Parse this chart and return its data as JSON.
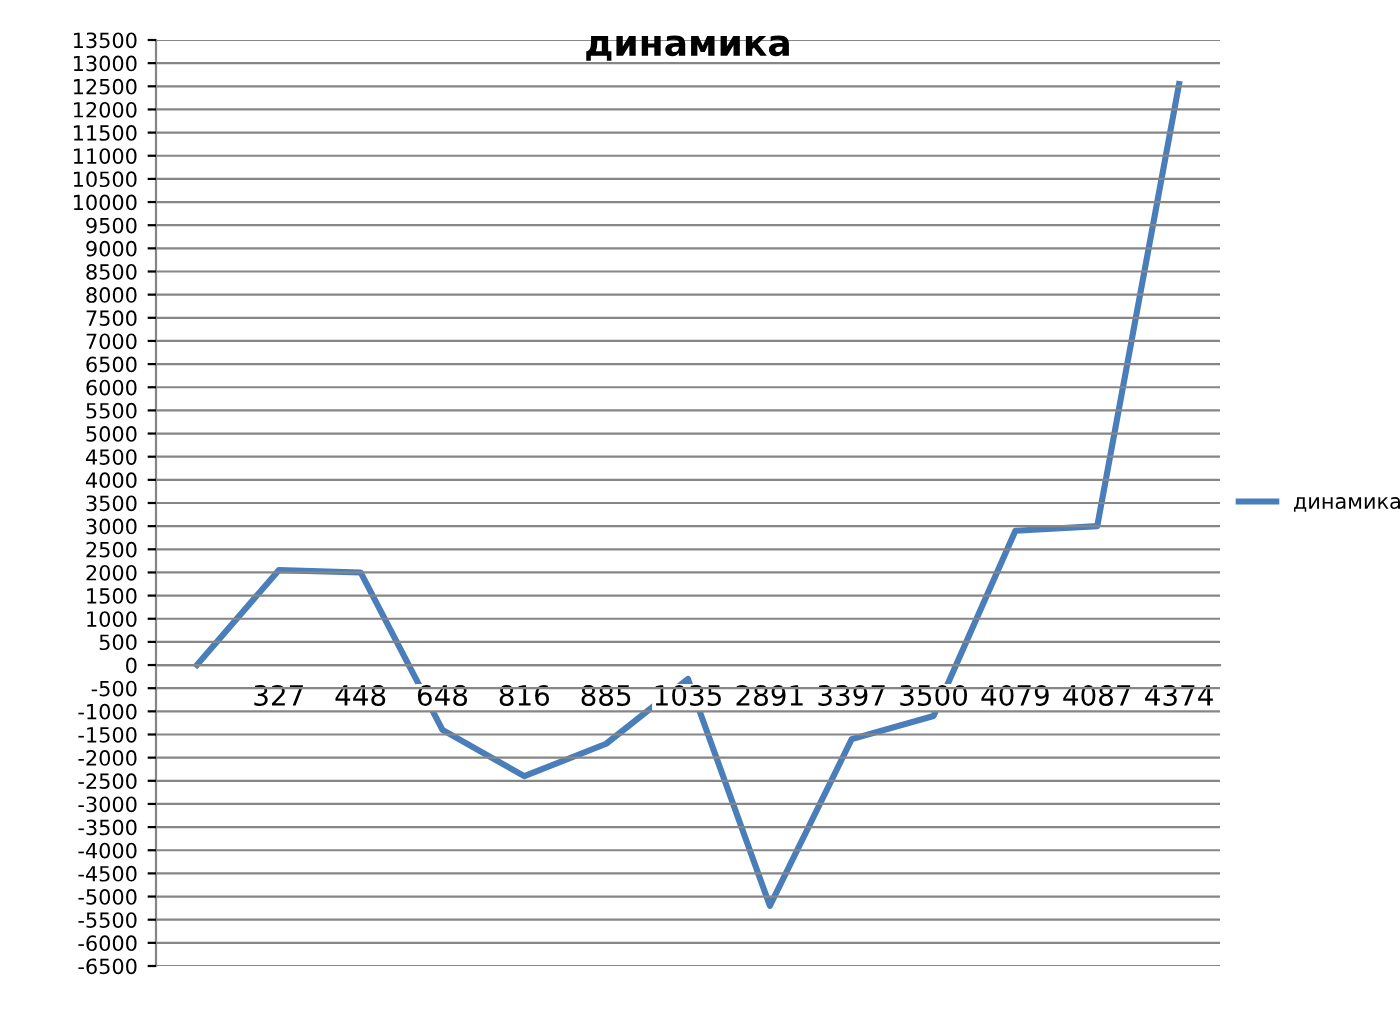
{
  "chart_data": {
    "type": "line",
    "title": "динамика",
    "categories": [
      null,
      "327",
      "448",
      "648",
      "816",
      "885",
      "1035",
      "2891",
      "3397",
      "3500",
      "4079",
      "4087",
      "4374"
    ],
    "series": [
      {
        "name": "динамика",
        "color": "#4a7ebb",
        "values": [
          0,
          2050,
          2000,
          -1400,
          -2400,
          -1700,
          -300,
          -5200,
          -1600,
          -1100,
          2900,
          3000,
          12550
        ]
      }
    ],
    "ylim": [
      -6500,
      13500
    ],
    "yticks": [
      -6500,
      -6000,
      -5500,
      -5000,
      -4500,
      -4000,
      -3500,
      -3000,
      -2500,
      -2000,
      -1500,
      -1000,
      -500,
      0,
      500,
      1000,
      1500,
      2000,
      2500,
      3000,
      3500,
      4000,
      4500,
      5000,
      5500,
      6000,
      6500,
      7000,
      7500,
      8000,
      8500,
      9000,
      9500,
      10000,
      10500,
      11000,
      11500,
      12000,
      12500,
      13000,
      13500
    ],
    "grid": "y",
    "legend": "right",
    "marker": "none",
    "line_style": "solid"
  }
}
